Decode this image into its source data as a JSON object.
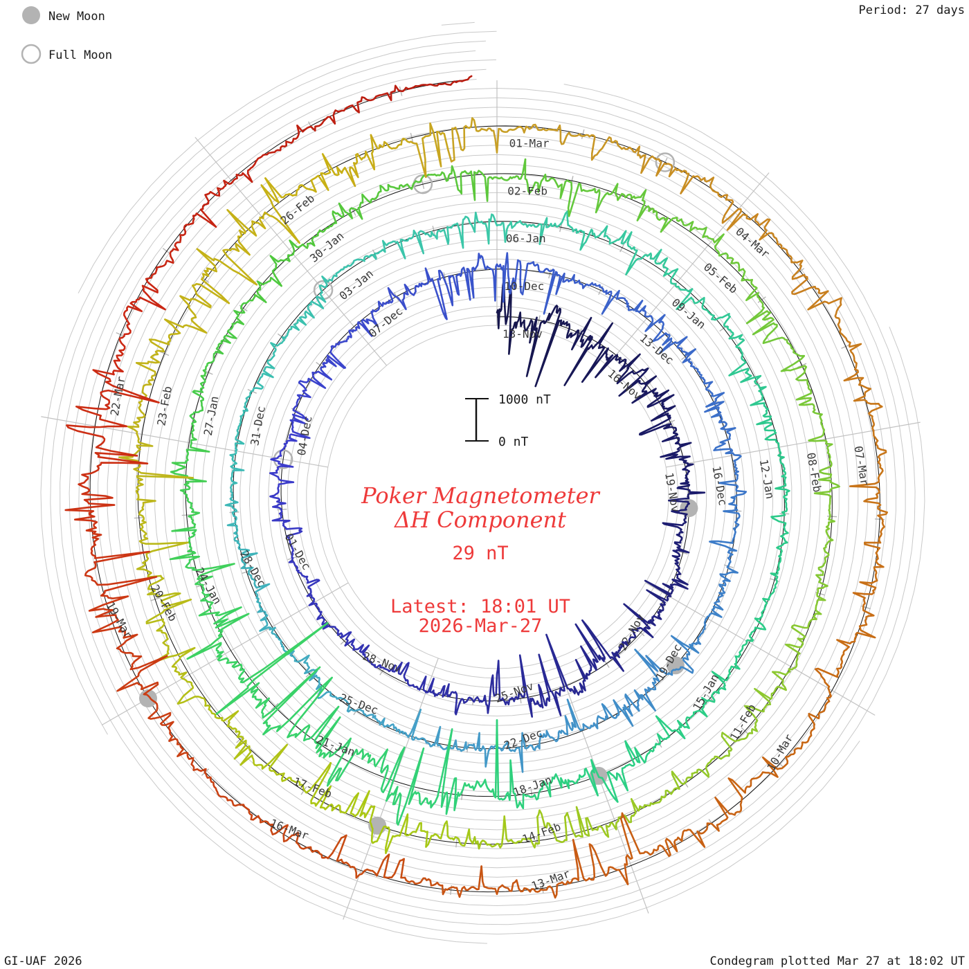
{
  "header": {
    "period_label": "Period: 27 days"
  },
  "legend": {
    "new_moon_label": "New Moon",
    "full_moon_label": "Full Moon",
    "moon_gray": "#b3b3b3"
  },
  "footer": {
    "credit": "GI-UAF 2026",
    "plotted": "Condegram plotted Mar 27 at 18:02 UT"
  },
  "center": {
    "title_line1": "Poker Magnetometer",
    "title_line2": "ΔH Component",
    "current_value": "29 nT",
    "latest_line1": "Latest: 18:01 UT",
    "latest_line2": "2026-Mar-27"
  },
  "scalebar": {
    "top_label": "1000 nT",
    "bottom_label": "0 nT"
  },
  "chart_data": {
    "type": "condegram-spiral",
    "station": "Poker Magnetometer ΔH Component",
    "period_days": 27,
    "spokes_per_turn": 9,
    "label_step_days": 3,
    "start_date": "2025-11-13",
    "latest_sample": "2026-Mar-27 18:01 UT",
    "days_total": 134.75,
    "scale_nT_per_division": 1000,
    "date_labels": [
      "13-Nov",
      "16-Nov",
      "19-Nov",
      "22-Nov",
      "25-Nov",
      "28-Nov",
      "01-Dec",
      "04-Dec",
      "07-Dec",
      "10-Dec",
      "13-Dec",
      "16-Dec",
      "19-Dec",
      "22-Dec",
      "25-Dec",
      "28-Dec",
      "31-Dec",
      "03-Jan",
      "06-Jan",
      "09-Jan",
      "12-Jan",
      "15-Jan",
      "18-Jan",
      "21-Jan",
      "24-Jan",
      "27-Jan",
      "30-Jan",
      "02-Feb",
      "05-Feb",
      "08-Feb",
      "11-Feb",
      "14-Feb",
      "17-Feb",
      "20-Feb",
      "23-Feb",
      "26-Feb",
      "01-Mar",
      "04-Mar",
      "07-Mar",
      "10-Mar",
      "13-Mar",
      "16-Mar",
      "19-Mar",
      "22-Mar"
    ],
    "new_moons": [
      {
        "date": "2025-11-20",
        "day": 7
      },
      {
        "date": "2025-12-20",
        "day": 37
      },
      {
        "date": "2026-01-18",
        "day": 66
      },
      {
        "date": "2026-02-17",
        "day": 96
      },
      {
        "date": "2026-03-19",
        "day": 126
      }
    ],
    "full_moons": [
      {
        "date": "2025-12-04",
        "day": 21
      },
      {
        "date": "2026-01-03",
        "day": 51
      },
      {
        "date": "2026-02-01",
        "day": 80
      },
      {
        "date": "2026-03-03",
        "day": 110
      }
    ],
    "colormap": [
      [
        0,
        "#16164b"
      ],
      [
        7,
        "#1c1c6e"
      ],
      [
        15,
        "#3030a8"
      ],
      [
        21,
        "#3c3ccc"
      ],
      [
        27,
        "#3a56cb"
      ],
      [
        34,
        "#3c78c8"
      ],
      [
        42,
        "#46a0c8"
      ],
      [
        48,
        "#3cbcb4"
      ],
      [
        54,
        "#3cc8a8"
      ],
      [
        60,
        "#2cc88c"
      ],
      [
        66,
        "#2cd084"
      ],
      [
        72,
        "#3cd264"
      ],
      [
        78,
        "#50c83c"
      ],
      [
        84,
        "#6cc83c"
      ],
      [
        90,
        "#8cc832"
      ],
      [
        96,
        "#aac814"
      ],
      [
        102,
        "#c0b41c"
      ],
      [
        106,
        "#c8b014"
      ],
      [
        108,
        "#c8a028"
      ],
      [
        112,
        "#c88020"
      ],
      [
        117,
        "#c86a14"
      ],
      [
        121,
        "#c85a14"
      ],
      [
        124,
        "#c84614"
      ],
      [
        127,
        "#cc3914"
      ],
      [
        130,
        "#cc2814"
      ],
      [
        134.75,
        "#b81c10"
      ]
    ],
    "activity_envelope_nT": [
      [
        0,
        900
      ],
      [
        1.5,
        1000
      ],
      [
        3,
        580
      ],
      [
        5,
        400
      ],
      [
        7,
        300
      ],
      [
        9,
        400
      ],
      [
        12,
        700
      ],
      [
        13,
        800
      ],
      [
        14,
        480
      ],
      [
        16,
        200
      ],
      [
        18,
        160
      ],
      [
        20,
        230
      ],
      [
        24,
        300
      ],
      [
        26,
        480
      ],
      [
        27.5,
        560
      ],
      [
        29,
        400
      ],
      [
        31,
        300
      ],
      [
        33,
        200
      ],
      [
        36,
        320
      ],
      [
        38,
        560
      ],
      [
        39.5,
        650
      ],
      [
        41,
        480
      ],
      [
        43,
        350
      ],
      [
        45,
        240
      ],
      [
        47,
        200
      ],
      [
        49,
        160
      ],
      [
        51,
        200
      ],
      [
        53,
        300
      ],
      [
        55,
        400
      ],
      [
        57,
        320
      ],
      [
        59,
        230
      ],
      [
        61,
        160
      ],
      [
        63,
        200
      ],
      [
        65,
        320
      ],
      [
        66,
        700
      ],
      [
        68,
        950
      ],
      [
        69,
        1300
      ],
      [
        70,
        1100
      ],
      [
        71,
        1400
      ],
      [
        72,
        950
      ],
      [
        73,
        700
      ],
      [
        74,
        480
      ],
      [
        75,
        320
      ],
      [
        77,
        240
      ],
      [
        79,
        300
      ],
      [
        81,
        400
      ],
      [
        83,
        480
      ],
      [
        85,
        320
      ],
      [
        87,
        240
      ],
      [
        89,
        200
      ],
      [
        91,
        300
      ],
      [
        93,
        350
      ],
      [
        95,
        450
      ],
      [
        97,
        560
      ],
      [
        99,
        480
      ],
      [
        101,
        560
      ],
      [
        103,
        700
      ],
      [
        105,
        650
      ],
      [
        106.5,
        480
      ],
      [
        108,
        350
      ],
      [
        110,
        240
      ],
      [
        112,
        300
      ],
      [
        114,
        320
      ],
      [
        117,
        400
      ],
      [
        119,
        600
      ],
      [
        121,
        500
      ],
      [
        123,
        320
      ],
      [
        125,
        350
      ],
      [
        126,
        560
      ],
      [
        127,
        700
      ],
      [
        128.5,
        800
      ],
      [
        130,
        560
      ],
      [
        131.5,
        400
      ],
      [
        133,
        240
      ],
      [
        134.7,
        130
      ]
    ]
  }
}
